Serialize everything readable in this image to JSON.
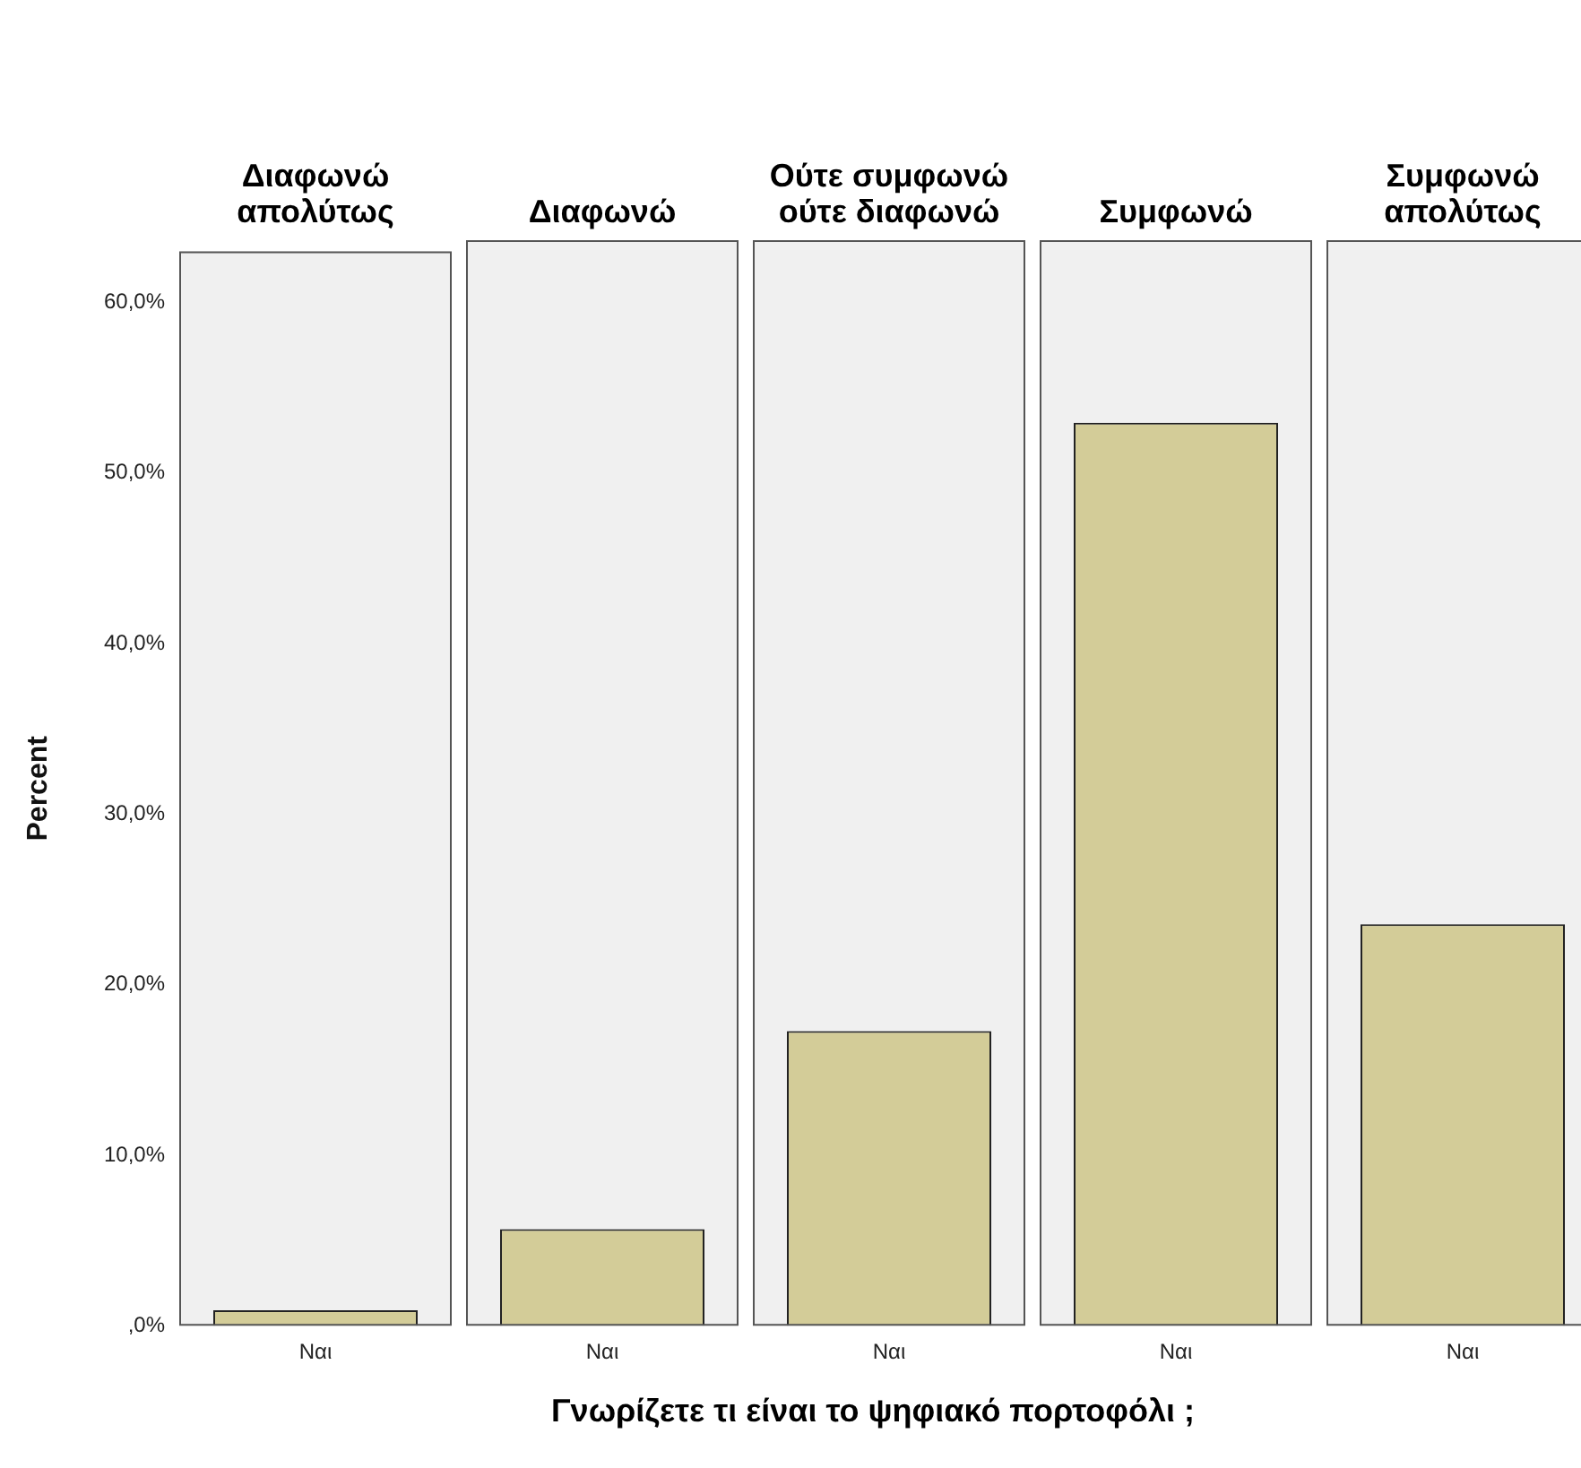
{
  "chart_data": [
    {
      "type": "bar",
      "title": "Διαφωνώ απολύτως",
      "ylabel": "Percent",
      "categories": [
        "Ναι"
      ],
      "values": [
        0.9
      ],
      "color": "#d3cc98",
      "ylim": [
        0,
        63
      ],
      "yticks": [
        {
          "value": 0,
          "label": ",0%"
        },
        {
          "value": 10,
          "label": "10,0%"
        },
        {
          "value": 20,
          "label": "20,0%"
        },
        {
          "value": 30,
          "label": "30,0%"
        },
        {
          "value": 40,
          "label": "40,0%"
        },
        {
          "value": 50,
          "label": "50,0%"
        },
        {
          "value": 60,
          "label": "60,0%"
        }
      ],
      "grid": false,
      "legend": false
    },
    {
      "type": "bar",
      "title": "Διαφωνώ",
      "categories": [
        "Ναι"
      ],
      "values": [
        5.6
      ],
      "color": "#d3cc98",
      "ylim": [
        0,
        63
      ],
      "tick_labels": "x",
      "grid": false,
      "legend": false
    },
    {
      "type": "bar",
      "title": "Ούτε συμφωνώ ούτε διαφωνώ",
      "xlabel": "Γνωρίζετε τι είναι το ψηφιακό πορτοφόλι ;",
      "categories": [
        "Ναι"
      ],
      "values": [
        17.1
      ],
      "color": "#d3cc98",
      "ylim": [
        0,
        63
      ],
      "tick_labels": "x",
      "grid": false,
      "legend": false
    },
    {
      "type": "bar",
      "title": "Συμφωνώ",
      "categories": [
        "Ναι"
      ],
      "values": [
        52.4
      ],
      "color": "#d3cc98",
      "ylim": [
        0,
        63
      ],
      "tick_labels": "x",
      "grid": false,
      "legend": false
    },
    {
      "type": "bar",
      "title": "Συμφωνώ απολύτως",
      "categories": [
        "Ναι"
      ],
      "values": [
        23.3
      ],
      "color": "#d3cc98",
      "ylim": [
        0,
        63
      ],
      "tick_labels": "x",
      "grid": false,
      "legend": false
    }
  ]
}
